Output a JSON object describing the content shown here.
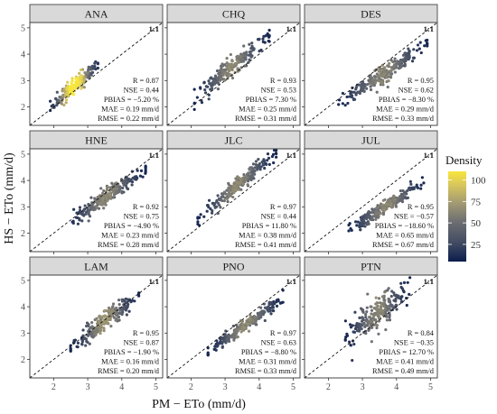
{
  "chart_data": {
    "type": "scatter",
    "xlabel": "PM − ETo (mm/d)",
    "ylabel": "HS − ETo (mm/d)",
    "xlim": [
      1.3,
      5.2
    ],
    "ylim": [
      1.3,
      5.2
    ],
    "xticks": [
      2,
      3,
      4,
      5
    ],
    "yticks": [
      2,
      3,
      4,
      5
    ],
    "reference_line_label": "1:1",
    "legend": {
      "title": "Density",
      "ticks": [
        25,
        50,
        75,
        100
      ],
      "range": [
        5,
        110
      ],
      "colors": [
        "#0b1d4d",
        "#3f4a62",
        "#6f7072",
        "#a39a72",
        "#d8c65d",
        "#f7e63c"
      ]
    },
    "panels": [
      {
        "site": "ANA",
        "R": "R = 0.87",
        "NSE": "NSE = 0.44",
        "PBIAS": "PBIAS = −5.20 %",
        "MAE": "MAE = 0.19 mm/d",
        "RMSE": "RMSE = 0.22 mm/d",
        "x_range": [
          1.9,
          3.3
        ],
        "slope": 1.15,
        "intercept": -0.2,
        "spread": 0.13,
        "density_peak": 110
      },
      {
        "site": "CHQ",
        "R": "R = 0.93",
        "NSE": "NSE = 0.53",
        "PBIAS": "PBIAS = 7.30 %",
        "MAE": "MAE = 0.25 mm/d",
        "RMSE": "RMSE = 0.31 mm/d",
        "x_range": [
          2.1,
          4.3
        ],
        "slope": 1.05,
        "intercept": 0.15,
        "spread": 0.18,
        "density_peak": 60
      },
      {
        "site": "DES",
        "R": "R = 0.95",
        "NSE": "NSE = 0.62",
        "PBIAS": "PBIAS = −8.30 %",
        "MAE": "MAE = 0.29 mm/d",
        "RMSE": "RMSE = 0.33 mm/d",
        "x_range": [
          2.3,
          4.9
        ],
        "slope": 0.9,
        "intercept": 0.0,
        "spread": 0.16,
        "density_peak": 60
      },
      {
        "site": "HNE",
        "R": "R = 0.92",
        "NSE": "NSE = 0.75",
        "PBIAS": "PBIAS = −4.90 %",
        "MAE": "MAE = 0.23 mm/d",
        "RMSE": "RMSE = 0.28 mm/d",
        "x_range": [
          2.4,
          4.7
        ],
        "slope": 0.9,
        "intercept": 0.2,
        "spread": 0.16,
        "density_peak": 60
      },
      {
        "site": "JLC",
        "R": "R = 0.97",
        "NSE": "NSE = 0.44",
        "PBIAS": "PBIAS = 11.80 %",
        "MAE": "MAE = 0.38 mm/d",
        "RMSE": "RMSE = 0.41 mm/d",
        "x_range": [
          2.2,
          4.5
        ],
        "slope": 1.12,
        "intercept": 0.05,
        "spread": 0.15,
        "density_peak": 60
      },
      {
        "site": "JUL",
        "R": "R = 0.95",
        "NSE": "NSE = −0.57",
        "PBIAS": "PBIAS = −18.60 %",
        "MAE": "MAE = 0.65 mm/d",
        "RMSE": "RMSE = 0.67 mm/d",
        "x_range": [
          2.6,
          4.8
        ],
        "slope": 0.85,
        "intercept": -0.1,
        "spread": 0.12,
        "density_peak": 60
      },
      {
        "site": "LAM",
        "R": "R = 0.95",
        "NSE": "NSE = 0.87",
        "PBIAS": "PBIAS = −1.90 %",
        "MAE": "MAE = 0.16 mm/d",
        "RMSE": "RMSE = 0.20 mm/d",
        "x_range": [
          2.5,
          4.5
        ],
        "slope": 1.0,
        "intercept": -0.05,
        "spread": 0.16,
        "density_peak": 65
      },
      {
        "site": "PNO",
        "R": "R = 0.97",
        "NSE": "NSE = 0.63",
        "PBIAS": "PBIAS = −8.80 %",
        "MAE": "MAE = 0.31 mm/d",
        "RMSE": "RMSE = 0.33 mm/d",
        "x_range": [
          2.5,
          4.7
        ],
        "slope": 0.92,
        "intercept": 0.0,
        "spread": 0.12,
        "density_peak": 60
      },
      {
        "site": "PTN",
        "R": "R = 0.84",
        "NSE": "NSE = −0.35",
        "PBIAS": "PBIAS = 12.70 %",
        "MAE": "MAE = 0.41 mm/d",
        "RMSE": "RMSE = 0.49 mm/d",
        "x_range": [
          2.5,
          4.4
        ],
        "slope": 1.0,
        "intercept": 0.3,
        "spread": 0.3,
        "density_peak": 60
      }
    ]
  }
}
